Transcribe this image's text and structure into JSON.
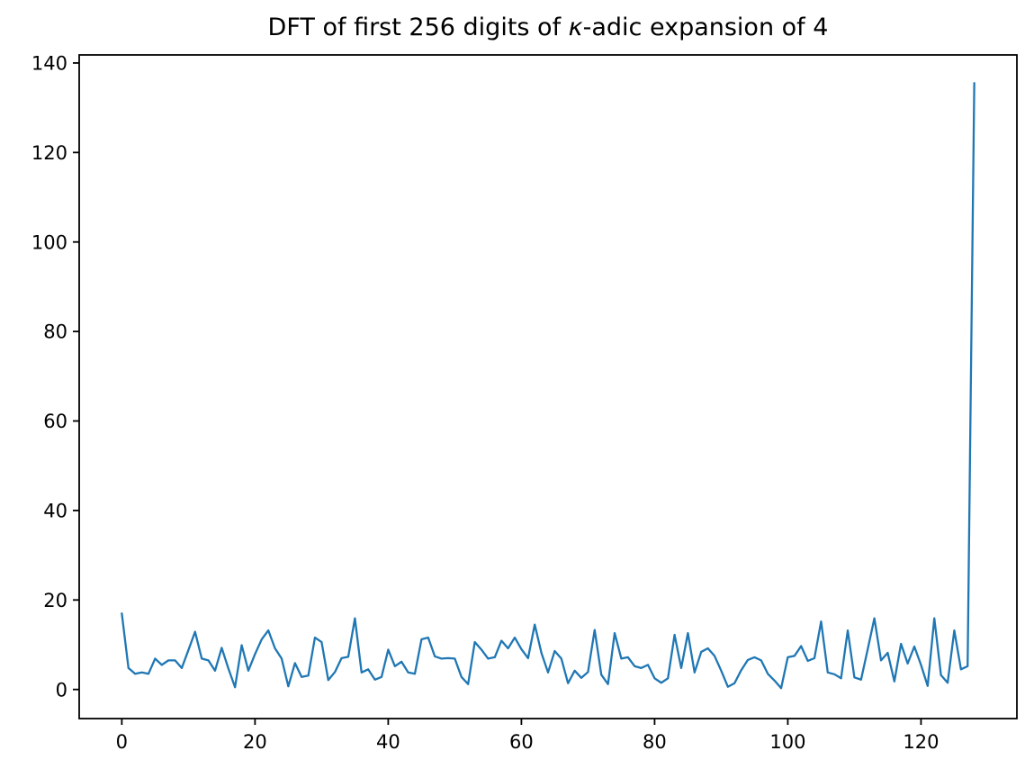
{
  "figure": {
    "title_prefix": "DFT of first 256 digits of ",
    "title_italic": "κ",
    "title_suffix": "-adic expansion of 4",
    "background": "#ffffff"
  },
  "chart_data": {
    "type": "line",
    "title": "DFT of first 256 digits of κ-adic expansion of 4",
    "xlabel": "",
    "ylabel": "",
    "legend": null,
    "grid": false,
    "line_color": "#1f77b4",
    "x_ticks": [
      0,
      20,
      40,
      60,
      80,
      100,
      120
    ],
    "y_ticks": [
      0,
      20,
      40,
      60,
      80,
      100,
      120,
      140
    ],
    "xlim": [
      -6.4,
      134.4
    ],
    "ylim": [
      -6.5,
      141.8
    ],
    "x_start": 0,
    "x_step": 1,
    "values": [
      17.0,
      4.8,
      3.5,
      3.8,
      3.5,
      6.9,
      5.5,
      6.5,
      6.5,
      4.8,
      8.8,
      12.9,
      6.9,
      6.5,
      4.2,
      9.3,
      4.7,
      0.5,
      9.9,
      4.2,
      7.9,
      11.2,
      13.2,
      9.2,
      6.9,
      0.7,
      5.9,
      2.8,
      3.1,
      11.6,
      10.6,
      2.1,
      3.9,
      7.0,
      7.3,
      15.9,
      3.8,
      4.5,
      2.2,
      2.8,
      8.9,
      5.2,
      6.2,
      3.8,
      3.5,
      11.2,
      11.6,
      7.4,
      6.9,
      7.0,
      6.9,
      2.8,
      1.2,
      10.6,
      8.9,
      6.9,
      7.2,
      10.9,
      9.2,
      11.6,
      9.0,
      7.0,
      14.5,
      8.2,
      3.8,
      8.6,
      6.9,
      1.4,
      4.2,
      2.6,
      3.9,
      13.3,
      3.3,
      1.2,
      12.6,
      6.9,
      7.2,
      5.2,
      4.8,
      5.5,
      2.5,
      1.5,
      2.5,
      12.2,
      4.8,
      12.6,
      3.8,
      8.4,
      9.2,
      7.5,
      4.2,
      0.6,
      1.4,
      4.3,
      6.6,
      7.2,
      6.5,
      3.5,
      2.0,
      0.3,
      7.2,
      7.5,
      9.7,
      6.4,
      7.0,
      15.2,
      3.8,
      3.4,
      2.5,
      13.2,
      2.7,
      2.2,
      9.0,
      15.9,
      6.5,
      8.2,
      1.8,
      10.2,
      5.8,
      9.6,
      5.5,
      0.8,
      15.9,
      3.2,
      1.5,
      13.2,
      4.5,
      5.2,
      135.5
    ]
  }
}
